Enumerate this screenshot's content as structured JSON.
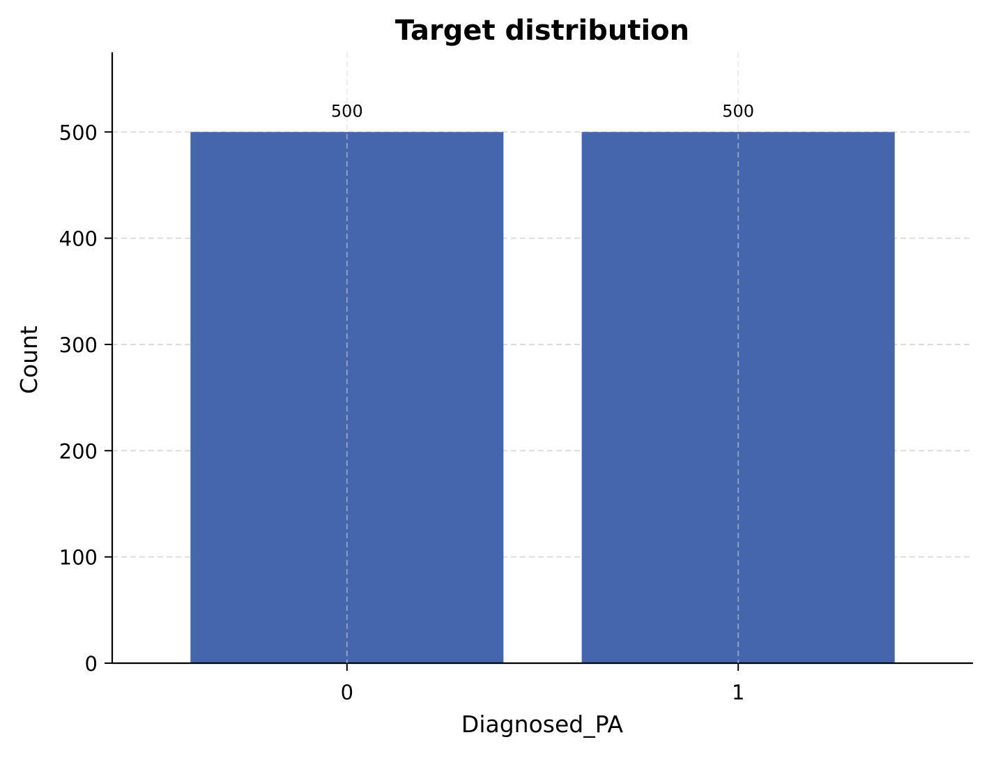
{
  "chart_data": {
    "type": "bar",
    "title": "Target distribution",
    "xlabel": "Diagnosed_PA",
    "ylabel": "Count",
    "categories": [
      "0",
      "1"
    ],
    "values": [
      500,
      500
    ],
    "data_labels": [
      "500",
      "500"
    ],
    "ylim": [
      0,
      575
    ],
    "yticks": [
      0,
      100,
      200,
      300,
      400,
      500
    ],
    "ytick_labels": [
      "0",
      "100",
      "200",
      "300",
      "400",
      "500"
    ],
    "grid": true,
    "bar_color": "#4565ad"
  }
}
